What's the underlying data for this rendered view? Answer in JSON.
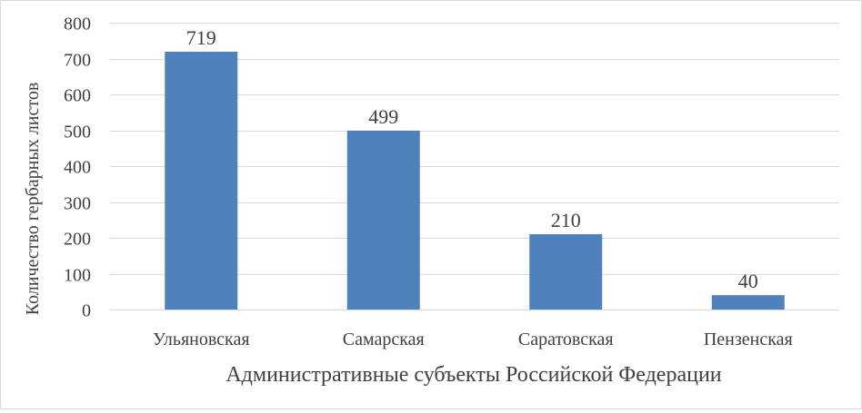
{
  "chart_data": {
    "type": "bar",
    "categories": [
      "Ульяновская",
      "Самарская",
      "Саратовская",
      "Пензенская"
    ],
    "values": [
      719,
      499,
      210,
      40
    ],
    "data_labels": [
      "719",
      "499",
      "210",
      "40"
    ],
    "title": "",
    "xlabel": "Административные субъекты Российской Федерации",
    "ylabel": "Количество гербарных листов",
    "ylim": [
      0,
      800
    ],
    "yticks": [
      0,
      100,
      200,
      300,
      400,
      500,
      600,
      700,
      800
    ],
    "grid": true,
    "legend": "none",
    "bar_color": "#4f81bd",
    "grid_color": "#d9d9d9",
    "text_color": "#404040"
  }
}
